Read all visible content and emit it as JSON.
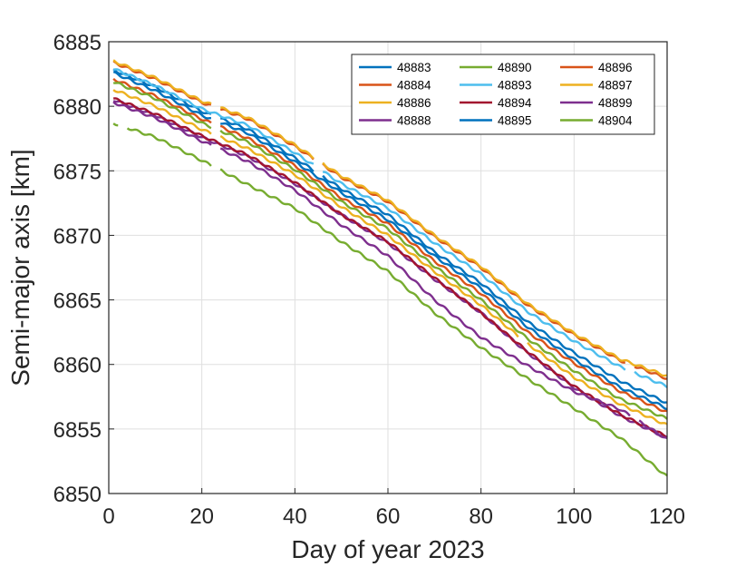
{
  "chart_data": {
    "type": "line",
    "title": "",
    "xlabel": "Day of year 2023",
    "ylabel": "Semi-major axis [km]",
    "xlim": [
      0,
      120
    ],
    "ylim": [
      6850,
      6885
    ],
    "xticks": [
      0,
      20,
      40,
      60,
      80,
      100,
      120
    ],
    "yticks": [
      6850,
      6855,
      6860,
      6865,
      6870,
      6875,
      6880,
      6885
    ],
    "grid": true,
    "legend": {
      "placement": "top-right",
      "columns": 3
    },
    "series": [
      {
        "name": "48883",
        "color": "#0072BD",
        "points": [
          [
            1,
            6882.8
          ],
          [
            10,
            6881.5
          ],
          [
            20,
            6879.6
          ],
          [
            30,
            6878.2
          ],
          [
            40,
            6876.0
          ],
          [
            50,
            6873.6
          ],
          [
            60,
            6871.6
          ],
          [
            70,
            6868.7
          ],
          [
            80,
            6866.3
          ],
          [
            90,
            6863.3
          ],
          [
            100,
            6860.9
          ],
          [
            110,
            6858.7
          ],
          [
            120,
            6857.0
          ]
        ],
        "gaps": [
          [
            22,
            24
          ],
          [
            44,
            46
          ]
        ]
      },
      {
        "name": "48884",
        "color": "#D95319",
        "points": [
          [
            1,
            6882.1
          ],
          [
            10,
            6880.8
          ],
          [
            20,
            6879.0
          ],
          [
            30,
            6877.5
          ],
          [
            40,
            6875.4
          ],
          [
            50,
            6872.9
          ],
          [
            60,
            6870.9
          ],
          [
            70,
            6868.0
          ],
          [
            80,
            6865.5
          ],
          [
            90,
            6862.5
          ],
          [
            100,
            6860.1
          ],
          [
            110,
            6857.9
          ],
          [
            120,
            6856.3
          ]
        ],
        "gaps": [
          [
            22,
            24
          ]
        ]
      },
      {
        "name": "48886",
        "color": "#EDB120",
        "points": [
          [
            1,
            6881.3
          ],
          [
            10,
            6880.0
          ],
          [
            20,
            6878.2
          ],
          [
            30,
            6876.7
          ],
          [
            40,
            6874.7
          ],
          [
            50,
            6872.2
          ],
          [
            60,
            6870.0
          ],
          [
            70,
            6867.2
          ],
          [
            80,
            6864.6
          ],
          [
            90,
            6861.6
          ],
          [
            100,
            6859.0
          ],
          [
            110,
            6856.9
          ],
          [
            120,
            6855.3
          ]
        ],
        "gaps": [
          [
            22,
            24
          ],
          [
            88,
            90
          ]
        ]
      },
      {
        "name": "48888",
        "color": "#7E2F8E",
        "points": [
          [
            1,
            6880.5
          ],
          [
            10,
            6879.3
          ],
          [
            20,
            6877.6
          ],
          [
            30,
            6876.1
          ],
          [
            40,
            6874.0
          ],
          [
            50,
            6871.6
          ],
          [
            60,
            6869.4
          ],
          [
            70,
            6866.6
          ],
          [
            80,
            6864.0
          ],
          [
            90,
            6860.9
          ],
          [
            100,
            6858.2
          ],
          [
            110,
            6856.0
          ],
          [
            120,
            6854.3
          ]
        ],
        "gaps": []
      },
      {
        "name": "48890",
        "color": "#77AC30",
        "points": [
          [
            1,
            6881.9
          ],
          [
            10,
            6880.6
          ],
          [
            20,
            6878.7
          ],
          [
            30,
            6877.2
          ],
          [
            40,
            6875.1
          ],
          [
            50,
            6872.6
          ],
          [
            60,
            6870.5
          ],
          [
            70,
            6867.6
          ],
          [
            80,
            6865.0
          ],
          [
            90,
            6862.0
          ],
          [
            100,
            6859.5
          ],
          [
            110,
            6857.3
          ],
          [
            120,
            6855.8
          ]
        ],
        "gaps": [
          [
            22,
            24
          ]
        ]
      },
      {
        "name": "48893",
        "color": "#4DBEEE",
        "points": [
          [
            1,
            6882.9
          ],
          [
            10,
            6881.6
          ],
          [
            20,
            6879.8
          ],
          [
            30,
            6878.5
          ],
          [
            40,
            6876.4
          ],
          [
            50,
            6874.0
          ],
          [
            60,
            6872.1
          ],
          [
            70,
            6869.4
          ],
          [
            80,
            6867.0
          ],
          [
            90,
            6864.1
          ],
          [
            100,
            6861.8
          ],
          [
            110,
            6859.8
          ],
          [
            120,
            6858.3
          ]
        ],
        "gaps": [
          [
            44,
            46
          ],
          [
            111,
            113
          ]
        ]
      },
      {
        "name": "48894",
        "color": "#A2142F",
        "points": [
          [
            1,
            6880.6
          ],
          [
            10,
            6879.4
          ],
          [
            20,
            6877.7
          ],
          [
            30,
            6876.2
          ],
          [
            40,
            6874.1
          ],
          [
            50,
            6871.6
          ],
          [
            60,
            6869.5
          ],
          [
            70,
            6866.7
          ],
          [
            80,
            6864.0
          ],
          [
            90,
            6861.0
          ],
          [
            100,
            6858.3
          ],
          [
            110,
            6856.1
          ],
          [
            120,
            6854.4
          ]
        ],
        "gaps": []
      },
      {
        "name": "48895",
        "color": "#0072BD",
        "points": [
          [
            1,
            6882.6
          ],
          [
            10,
            6881.2
          ],
          [
            20,
            6879.3
          ],
          [
            30,
            6877.9
          ],
          [
            40,
            6875.7
          ],
          [
            50,
            6873.3
          ],
          [
            60,
            6871.2
          ],
          [
            70,
            6868.4
          ],
          [
            80,
            6865.9
          ],
          [
            90,
            6862.9
          ],
          [
            100,
            6860.4
          ],
          [
            110,
            6858.2
          ],
          [
            120,
            6856.6
          ]
        ],
        "gaps": [
          [
            22,
            24
          ]
        ]
      },
      {
        "name": "48896",
        "color": "#D95319",
        "points": [
          [
            1,
            6883.4
          ],
          [
            10,
            6882.1
          ],
          [
            20,
            6880.3
          ],
          [
            30,
            6879.0
          ],
          [
            40,
            6876.9
          ],
          [
            50,
            6874.5
          ],
          [
            60,
            6872.6
          ],
          [
            70,
            6869.9
          ],
          [
            80,
            6867.5
          ],
          [
            90,
            6864.6
          ],
          [
            100,
            6862.3
          ],
          [
            110,
            6860.3
          ],
          [
            120,
            6858.9
          ]
        ],
        "gaps": [
          [
            22,
            24
          ],
          [
            44,
            46
          ],
          [
            111,
            113
          ]
        ]
      },
      {
        "name": "48897",
        "color": "#EDB120",
        "points": [
          [
            1,
            6883.5
          ],
          [
            10,
            6882.2
          ],
          [
            20,
            6880.4
          ],
          [
            30,
            6879.1
          ],
          [
            40,
            6877.0
          ],
          [
            50,
            6874.6
          ],
          [
            60,
            6872.7
          ],
          [
            70,
            6870.0
          ],
          [
            80,
            6867.6
          ],
          [
            90,
            6864.7
          ],
          [
            100,
            6862.4
          ],
          [
            110,
            6860.4
          ],
          [
            120,
            6859.1
          ]
        ],
        "gaps": [
          [
            22,
            24
          ],
          [
            44,
            46
          ]
        ]
      },
      {
        "name": "48899",
        "color": "#7E2F8E",
        "points": [
          [
            1,
            6880.3
          ],
          [
            10,
            6879.1
          ],
          [
            20,
            6877.3
          ],
          [
            30,
            6875.7
          ],
          [
            40,
            6873.5
          ],
          [
            50,
            6870.8
          ],
          [
            60,
            6868.4
          ],
          [
            70,
            6865.0
          ],
          [
            80,
            6862.1
          ],
          [
            90,
            6859.9
          ],
          [
            100,
            6857.9
          ],
          [
            110,
            6856.5
          ],
          [
            120,
            6854.2
          ]
        ],
        "gaps": [
          [
            22,
            24
          ],
          [
            112,
            114
          ]
        ]
      },
      {
        "name": "48904",
        "color": "#77AC30",
        "points": [
          [
            1,
            6878.7
          ],
          [
            10,
            6877.6
          ],
          [
            20,
            6875.8
          ],
          [
            30,
            6873.9
          ],
          [
            40,
            6872.1
          ],
          [
            50,
            6869.5
          ],
          [
            60,
            6867.2
          ],
          [
            70,
            6864.0
          ],
          [
            80,
            6861.3
          ],
          [
            90,
            6858.9
          ],
          [
            100,
            6856.6
          ],
          [
            110,
            6854.3
          ],
          [
            120,
            6851.3
          ]
        ],
        "gaps": [
          [
            2,
            4
          ],
          [
            22,
            24
          ]
        ]
      }
    ]
  }
}
